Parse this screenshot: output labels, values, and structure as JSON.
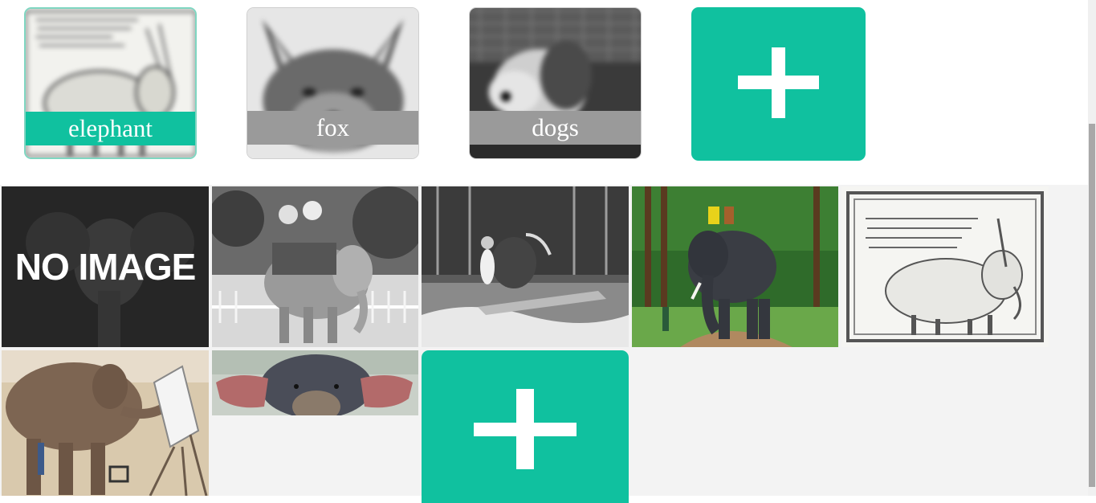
{
  "albums": [
    {
      "label": "elephant",
      "selected": true
    },
    {
      "label": "fox",
      "selected": false
    },
    {
      "label": "dogs",
      "selected": false
    }
  ],
  "add_album": {
    "icon": "plus-icon"
  },
  "photos": [
    {
      "id": "no-image",
      "overlay_text": "NO IMAGE"
    },
    {
      "id": "elephant-ride-vintage"
    },
    {
      "id": "elephant-waterski-vintage"
    },
    {
      "id": "elephant-with-riders-forest"
    },
    {
      "id": "elephant-engraving"
    },
    {
      "id": "elephant-painting-easel"
    },
    {
      "id": "elephant-closeup"
    }
  ],
  "add_photo": {
    "icon": "plus-icon"
  },
  "colors": {
    "accent": "#10c19f",
    "grid_background": "#f3f3f3",
    "label_grey": "#9a9a9a"
  }
}
